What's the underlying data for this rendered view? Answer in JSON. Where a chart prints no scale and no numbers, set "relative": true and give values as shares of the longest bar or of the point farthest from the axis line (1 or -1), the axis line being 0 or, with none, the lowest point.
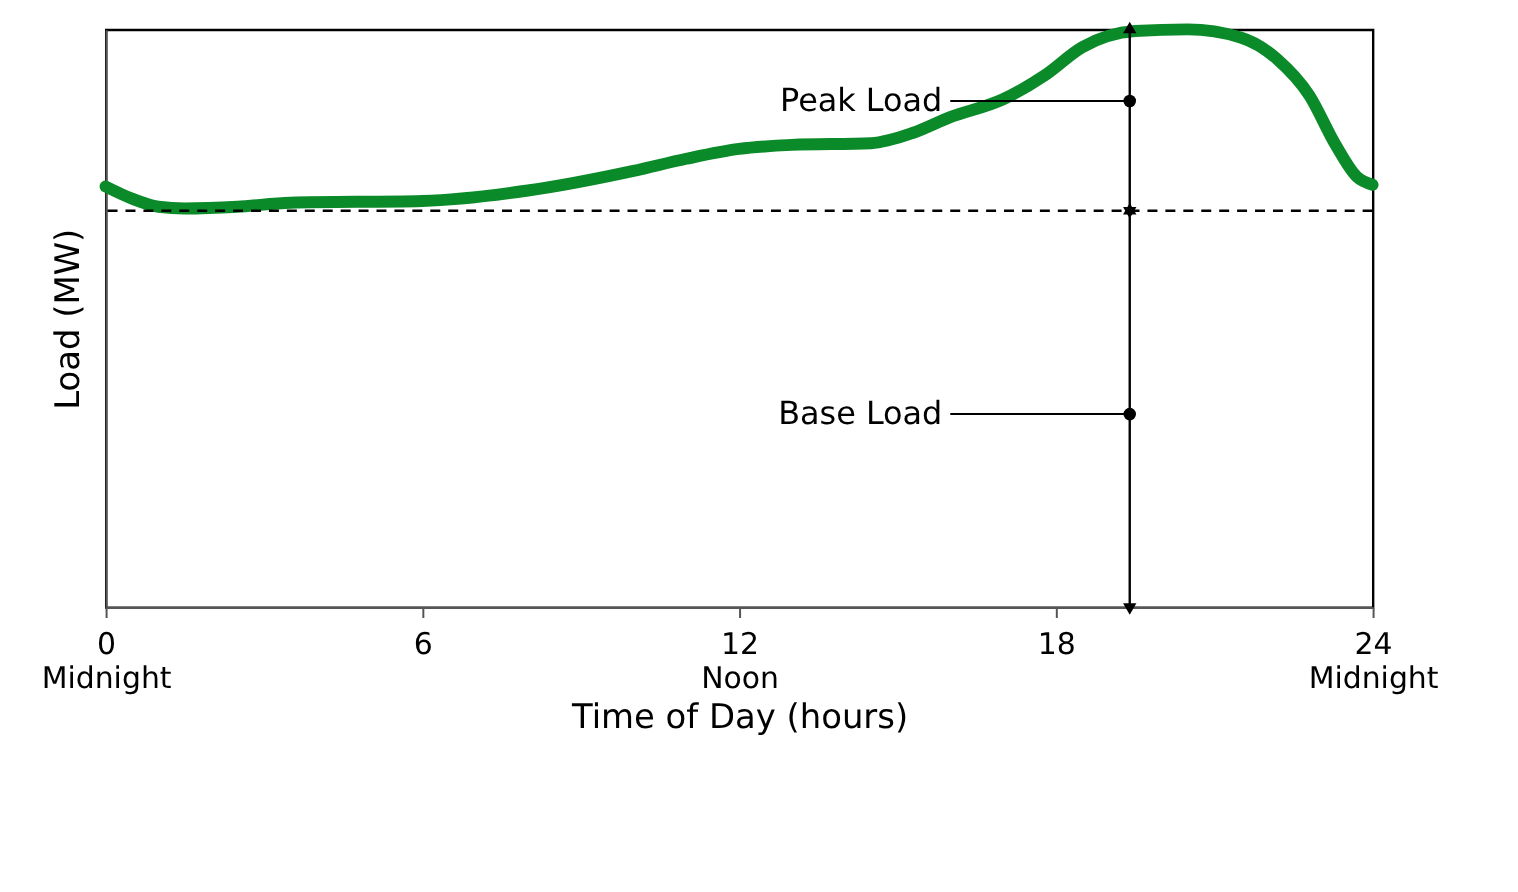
{
  "chart_data": {
    "type": "line",
    "relative": true,
    "xlabel": "Time of Day (hours)",
    "ylabel": "Load (MW)",
    "x": [
      0,
      0.5,
      1,
      1.5,
      2.5,
      3.5,
      6,
      8,
      10,
      11,
      12,
      13,
      14.5,
      15.3,
      16,
      17,
      17.8,
      18.5,
      19.5,
      20.5,
      21.5,
      22.2,
      22.8,
      23.3,
      23.7,
      24
    ],
    "series": [
      {
        "color": "#0a8a28",
        "values": [
          0.728,
          0.707,
          0.693,
          0.69,
          0.693,
          0.7,
          0.703,
          0.721,
          0.755,
          0.776,
          0.793,
          0.8,
          0.803,
          0.821,
          0.848,
          0.879,
          0.921,
          0.969,
          0.997,
          1,
          0.986,
          0.948,
          0.886,
          0.8,
          0.745,
          0.731
        ]
      }
    ],
    "xlim": [
      0,
      24
    ],
    "xticks": [
      {
        "value": 0,
        "label": "0\nMidnight"
      },
      6,
      {
        "value": 12,
        "label": "12\nNoon"
      },
      18,
      {
        "value": 24,
        "label": "24\nMidnight"
      }
    ],
    "ref_lines": [
      {
        "axis": "y",
        "value": 0.686,
        "color": "#000000",
        "line_style": "dashed"
      }
    ],
    "annotations": [
      {
        "text": "Peak Load",
        "x": 19.4,
        "y": 0.876
      },
      {
        "text": "Base Load",
        "x": 19.4,
        "y": 0.334
      }
    ],
    "grid": false,
    "marker": "none",
    "line_style": "solid"
  }
}
